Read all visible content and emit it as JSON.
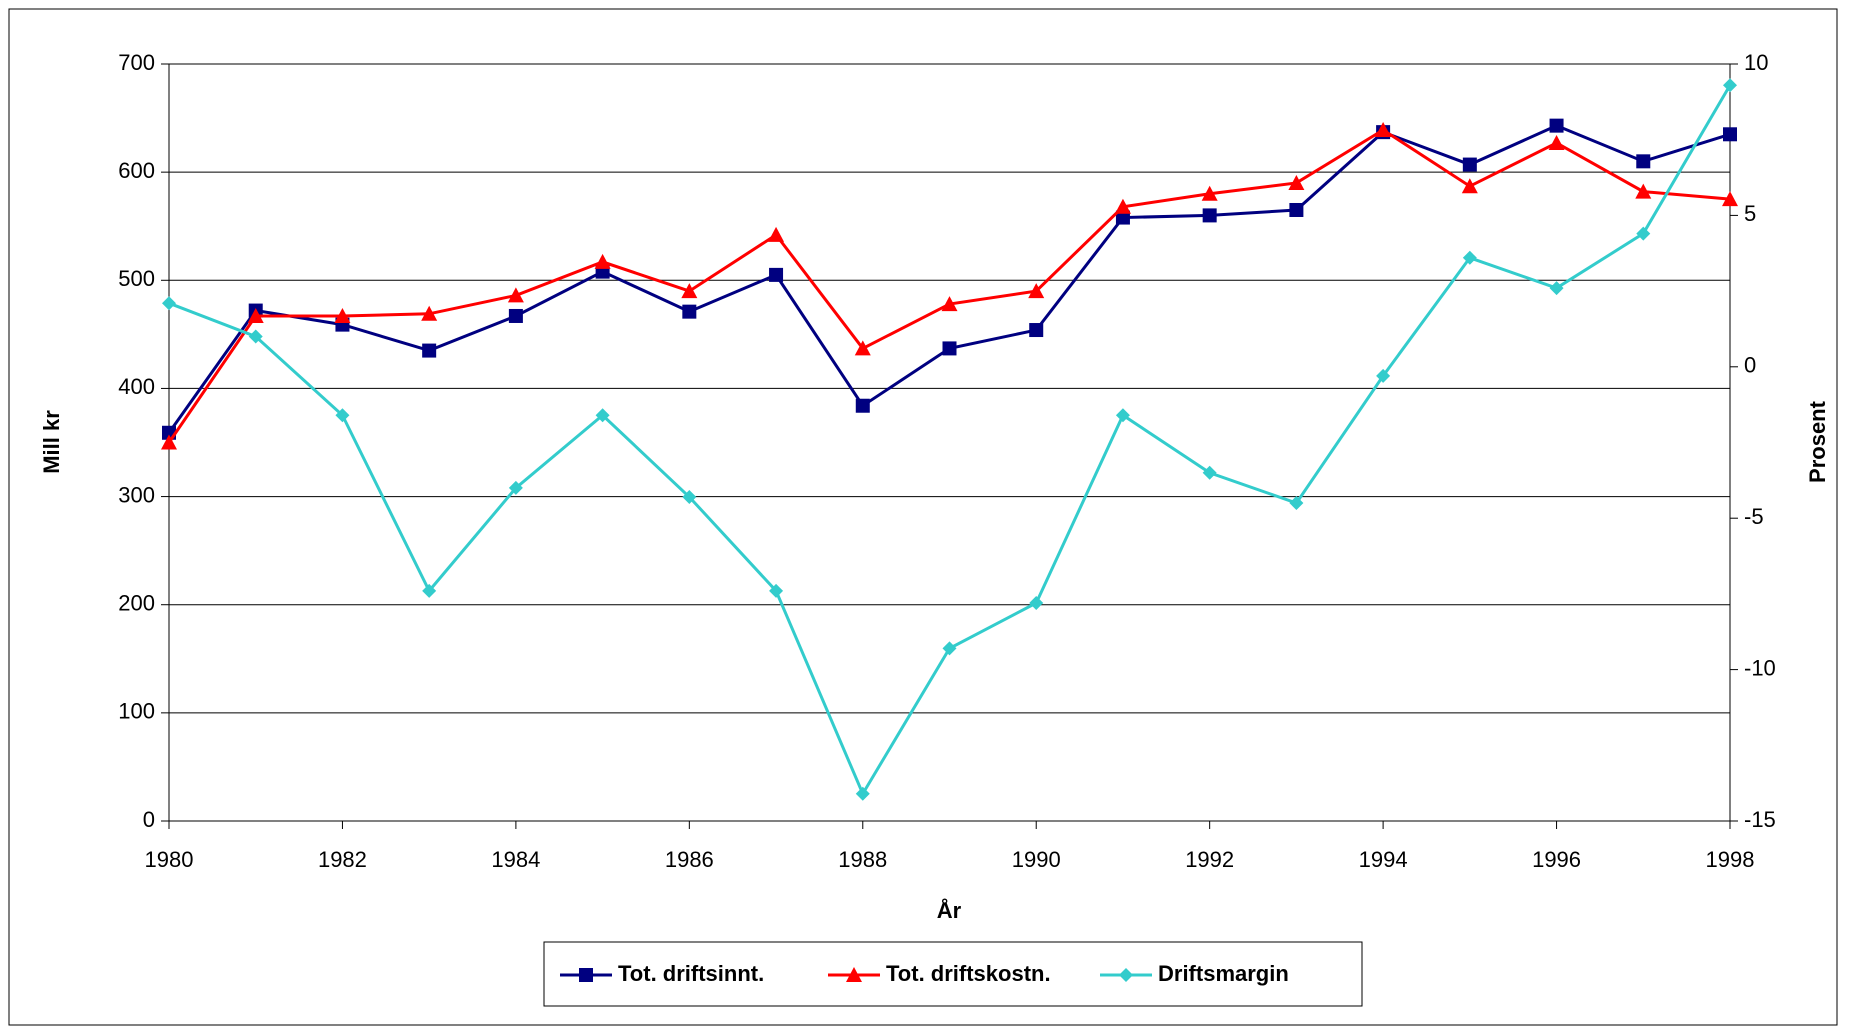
{
  "chart_data": {
    "type": "line",
    "x": [
      1980,
      1981,
      1982,
      1983,
      1984,
      1985,
      1986,
      1987,
      1988,
      1989,
      1990,
      1991,
      1992,
      1993,
      1994,
      1995,
      1996,
      1997,
      1998
    ],
    "series": [
      {
        "name": "Tot. driftsinnt.",
        "color": "#000080",
        "marker": "square",
        "values": [
          359,
          472,
          459,
          435,
          467,
          508,
          471,
          505,
          384,
          437,
          454,
          558,
          560,
          565,
          637,
          607,
          643,
          610,
          635
        ]
      },
      {
        "name": "Tot. driftskostn.",
        "color": "#ff0000",
        "marker": "triangle",
        "values": [
          350,
          467,
          467,
          469,
          486,
          517,
          490,
          542,
          437,
          478,
          490,
          568,
          580,
          590,
          639,
          587,
          627,
          582,
          575
        ]
      },
      {
        "name": "Driftsmargin",
        "color": "#33cccc",
        "marker": "diamond",
        "axis": "y2",
        "values": [
          2.1,
          1.0,
          -1.6,
          -7.4,
          -4.0,
          -1.6,
          -4.3,
          -7.4,
          -14.1,
          -9.3,
          -7.8,
          -1.6,
          -3.5,
          -4.5,
          -0.3,
          3.6,
          2.6,
          4.4,
          9.3
        ]
      }
    ],
    "xlabel": "År",
    "ylabel": "Mill kr",
    "y2label": "Prosent",
    "xlim": [
      1980,
      1998
    ],
    "xticks": [
      1980,
      1982,
      1984,
      1986,
      1988,
      1990,
      1992,
      1994,
      1996,
      1998
    ],
    "ylim": [
      0,
      700
    ],
    "yticks": [
      0,
      100,
      200,
      300,
      400,
      500,
      600,
      700
    ],
    "y2lim": [
      -15,
      10
    ],
    "y2ticks": [
      -15,
      -10,
      -5,
      0,
      5,
      10
    ],
    "y2_negative_tick_color": "#ff0000",
    "grid": true,
    "legend": "bottom"
  }
}
